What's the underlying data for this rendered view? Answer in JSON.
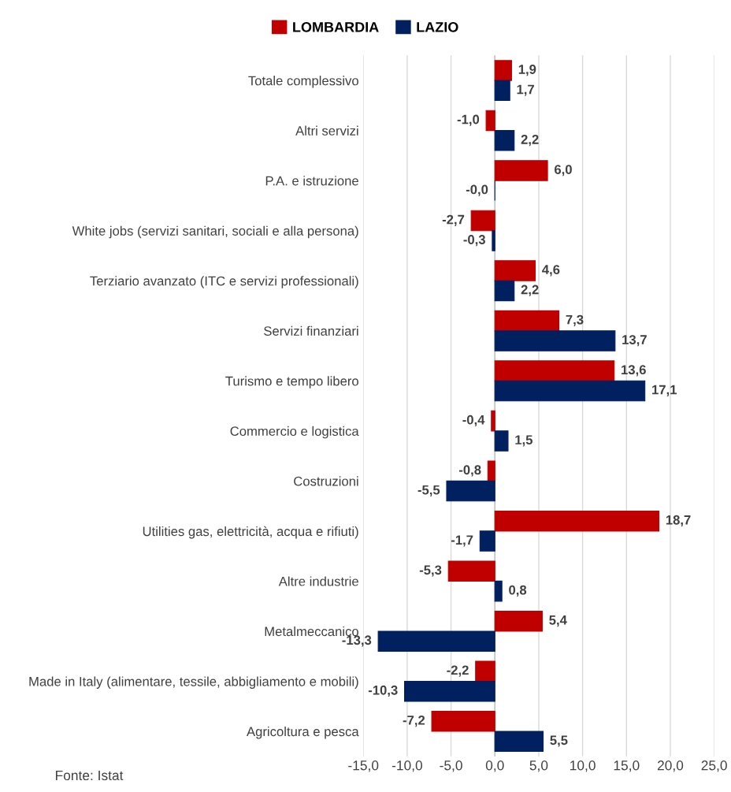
{
  "chart_data": {
    "type": "bar",
    "orientation": "horizontal",
    "categories": [
      "Totale complessivo",
      "Altri servizi",
      "P.A. e istruzione",
      "White jobs (servizi sanitari, sociali e alla persona)",
      "Terziario avanzato (ITC e servizi professionali)",
      "Servizi finanziari",
      "Turismo e tempo libero",
      "Commercio e logistica",
      "Costruzioni",
      "Utilities gas, elettricità, acqua e rifiuti)",
      "Altre industrie",
      "Metalmeccanico",
      "Made in Italy (alimentare, tessile, abbigliamento e mobili)",
      "Agricoltura e pesca"
    ],
    "series": [
      {
        "name": "LOMBARDIA",
        "color": "#c00000",
        "values": [
          1.9,
          -1.0,
          6.0,
          -2.7,
          4.6,
          7.3,
          13.6,
          -0.4,
          -0.8,
          18.7,
          -5.3,
          5.4,
          -2.2,
          -7.2
        ],
        "value_labels": [
          "1,9",
          "-1,0",
          "6,0",
          "-2,7",
          "4,6",
          "7,3",
          "13,6",
          "-0,4",
          "-0,8",
          "18,7",
          "-5,3",
          "5,4",
          "-2,2",
          "-7,2"
        ]
      },
      {
        "name": "LAZIO",
        "color": "#002060",
        "values": [
          1.7,
          2.2,
          -0.0,
          -0.3,
          2.2,
          13.7,
          17.1,
          1.5,
          -5.5,
          -1.7,
          0.8,
          -13.3,
          -10.3,
          5.5
        ],
        "value_labels": [
          "1,7",
          "2,2",
          "-0,0",
          "-0,3",
          "2,2",
          "13,7",
          "17,1",
          "1,5",
          "-5,5",
          "-1,7",
          "0,8",
          "-13,3",
          "-10,3",
          "5,5"
        ]
      }
    ],
    "xlim": [
      -15,
      25
    ],
    "xticks": [
      {
        "value": -15,
        "label": "-15,0"
      },
      {
        "value": -10,
        "label": "-10,0"
      },
      {
        "value": -5,
        "label": "-5,0"
      },
      {
        "value": 0,
        "label": "0,0"
      },
      {
        "value": 5,
        "label": "5,0"
      },
      {
        "value": 10,
        "label": "10,0"
      },
      {
        "value": 15,
        "label": "15,0"
      },
      {
        "value": 20,
        "label": "20,0"
      },
      {
        "value": 25,
        "label": "25,0"
      }
    ],
    "grid": "x",
    "legend": "top",
    "annotations": [
      "Fonte: Istat"
    ]
  }
}
